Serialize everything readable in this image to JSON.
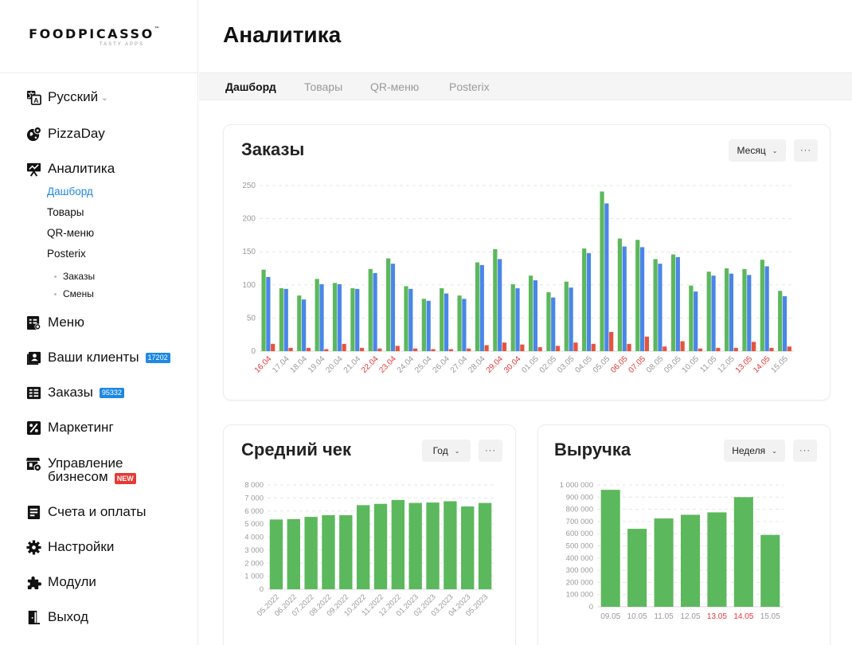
{
  "logo": {
    "name": "FOODPICASSO",
    "tm": "™",
    "tagline": "TASTY APPS"
  },
  "sidebar": {
    "language": "Русский",
    "restaurant": "PizzaDay",
    "analytics": "Аналитика",
    "analytics_sub": [
      "Дашборд",
      "Товары",
      "QR-меню",
      "Posterix"
    ],
    "posterix_sub": [
      "Заказы",
      "Смены"
    ],
    "menu": "Меню",
    "clients": "Ваши клиенты",
    "clients_badge": "17202",
    "orders": "Заказы",
    "orders_badge": "95332",
    "marketing": "Маркетинг",
    "business_line1": "Управление",
    "business_line2": "бизнесом",
    "business_badge": "NEW",
    "billing": "Счета и оплаты",
    "settings": "Настройки",
    "modules": "Модули",
    "logout": "Выход"
  },
  "header": {
    "title": "Аналитика"
  },
  "tabs": [
    "Дашборд",
    "Товары",
    "QR-меню",
    "Posterix"
  ],
  "orders_card": {
    "title": "Заказы",
    "period": "Месяц",
    "more": "···"
  },
  "avg_card": {
    "title": "Средний чек",
    "period": "Год",
    "more": "···"
  },
  "revenue_card": {
    "title": "Выручка",
    "period": "Неделя",
    "more": "···"
  },
  "colors": {
    "green": "#5cb85c",
    "blue": "#4a86e8",
    "red": "#e8533c",
    "accent": "#1e88e5",
    "weekend": "#e53935"
  },
  "chart_data": [
    {
      "type": "bar",
      "title": "Заказы",
      "ylim": [
        0,
        250
      ],
      "yticks": [
        0,
        50,
        100,
        150,
        200,
        250
      ],
      "categories": [
        "16.04",
        "17.04",
        "18.04",
        "19.04",
        "20.04",
        "21.04",
        "22.04",
        "23.04",
        "24.04",
        "25.04",
        "26.04",
        "27.04",
        "28.04",
        "29.04",
        "30.04",
        "01.05",
        "02.05",
        "03.05",
        "04.05",
        "05.05",
        "06.05",
        "07.05",
        "08.05",
        "09.05",
        "10.05",
        "11.05",
        "12.05",
        "13.05",
        "14.05",
        "15.05"
      ],
      "weekend_labels": [
        "16.04",
        "22.04",
        "23.04",
        "29.04",
        "30.04",
        "06.05",
        "07.05",
        "13.05",
        "14.05"
      ],
      "series": [
        {
          "color": "#5cb85c",
          "values": [
            123,
            95,
            84,
            109,
            103,
            95,
            124,
            140,
            98,
            79,
            95,
            84,
            134,
            154,
            101,
            114,
            89,
            105,
            155,
            241,
            170,
            168,
            139,
            146,
            99,
            120,
            125,
            124,
            138,
            91
          ]
        },
        {
          "color": "#4a86e8",
          "values": [
            112,
            94,
            78,
            101,
            101,
            94,
            118,
            132,
            94,
            76,
            87,
            79,
            130,
            139,
            95,
            107,
            81,
            96,
            148,
            223,
            158,
            157,
            132,
            142,
            90,
            114,
            117,
            115,
            128,
            83
          ]
        },
        {
          "color": "#e8533c",
          "values": [
            11,
            5,
            5,
            3,
            11,
            5,
            4,
            8,
            4,
            3,
            3,
            4,
            9,
            13,
            10,
            6,
            8,
            13,
            11,
            29,
            11,
            22,
            7,
            15,
            4,
            5,
            5,
            14,
            5,
            7
          ]
        }
      ]
    },
    {
      "type": "bar",
      "title": "Средний чек",
      "ylim": [
        0,
        8000
      ],
      "yticks": [
        "0",
        "1 000",
        "2 000",
        "3 000",
        "4 000",
        "5 000",
        "6 000",
        "7 000",
        "8 000"
      ],
      "categories": [
        "05.2022",
        "06.2022",
        "07.2022",
        "08.2022",
        "09.2022",
        "10.2022",
        "11.2022",
        "12.2022",
        "01.2023",
        "02.2023",
        "03.2023",
        "04.2023",
        "05.2023"
      ],
      "values": [
        5350,
        5380,
        5550,
        5680,
        5680,
        6450,
        6550,
        6850,
        6620,
        6650,
        6750,
        6350,
        6620
      ]
    },
    {
      "type": "bar",
      "title": "Выручка",
      "ylim": [
        0,
        1000000
      ],
      "yticks": [
        "0",
        "100 000",
        "200 000",
        "300 000",
        "400 000",
        "500 000",
        "600 000",
        "700 000",
        "800 000",
        "900 000",
        "1 000 000"
      ],
      "categories": [
        "09.05",
        "10.05",
        "11.05",
        "12.05",
        "13.05",
        "14.05",
        "15.05"
      ],
      "weekend_labels": [
        "13.05",
        "14.05"
      ],
      "values": [
        960000,
        640000,
        725000,
        755000,
        775000,
        900000,
        590000
      ]
    }
  ]
}
